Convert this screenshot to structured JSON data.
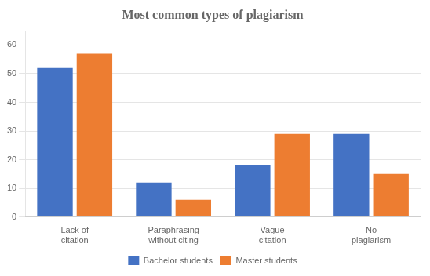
{
  "chart_data": {
    "type": "bar",
    "title": "Most common types of plagiarism",
    "categories": [
      "Lack of\ncitation",
      "Paraphrasing\nwithout citing",
      "Vague\ncitation",
      "No\nplagiarism"
    ],
    "series": [
      {
        "name": "Bachelor students",
        "color": "#4472C4",
        "values": [
          52,
          12,
          18,
          29
        ]
      },
      {
        "name": "Master students",
        "color": "#ED7D31",
        "values": [
          57,
          6,
          29,
          15
        ]
      }
    ],
    "ylim": [
      0,
      65
    ],
    "yticks": [
      0,
      10,
      20,
      30,
      40,
      50,
      60
    ],
    "grid": true,
    "legend": "bottom"
  }
}
